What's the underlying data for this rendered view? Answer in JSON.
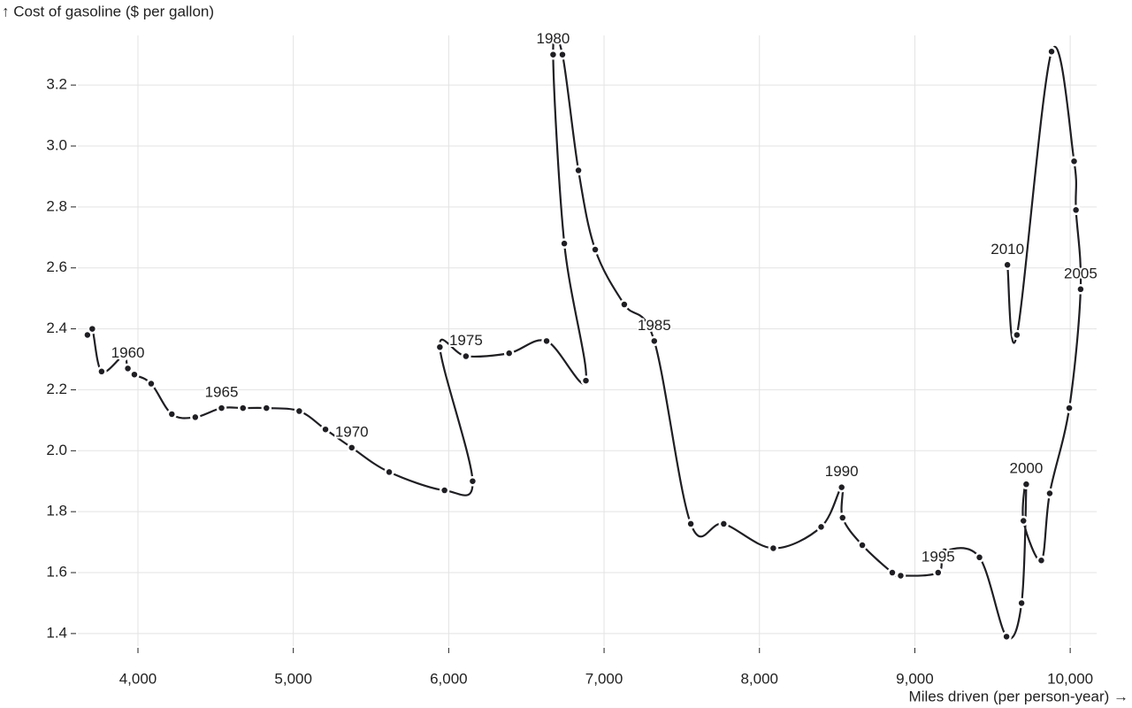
{
  "chart_data": {
    "type": "connected-scatter",
    "ylabel": "↑ Cost of gasoline ($ per gallon)",
    "xlabel": "Miles driven (per person-year) →",
    "color": "#1f1f23",
    "grid": true,
    "xlim": [
      3613,
      10170
    ],
    "ylim": [
      1.359,
      3.363
    ],
    "xticks": [
      {
        "value": 4000,
        "label": "4,000"
      },
      {
        "value": 5000,
        "label": "5,000"
      },
      {
        "value": 6000,
        "label": "6,000"
      },
      {
        "value": 7000,
        "label": "7,000"
      },
      {
        "value": 8000,
        "label": "8,000"
      },
      {
        "value": 9000,
        "label": "9,000"
      },
      {
        "value": 10000,
        "label": "10,000"
      }
    ],
    "yticks": [
      {
        "value": 1.4,
        "label": "1.4"
      },
      {
        "value": 1.6,
        "label": "1.6"
      },
      {
        "value": 1.8,
        "label": "1.8"
      },
      {
        "value": 2.0,
        "label": "2.0"
      },
      {
        "value": 2.2,
        "label": "2.2"
      },
      {
        "value": 2.4,
        "label": "2.4"
      },
      {
        "value": 2.6,
        "label": "2.6"
      },
      {
        "value": 2.8,
        "label": "2.8"
      },
      {
        "value": 3.0,
        "label": "3.0"
      },
      {
        "value": 3.2,
        "label": "3.2"
      }
    ],
    "x": [
      3675,
      3706,
      3766,
      3905,
      3935,
      3977,
      4085,
      4218,
      4369,
      4538,
      4676,
      4827,
      5038,
      5207,
      5376,
      5617,
      5973,
      6154,
      5943,
      6111,
      6389,
      6630,
      6883,
      6744,
      6672,
      6732,
      6835,
      6943,
      7130,
      7323,
      7558,
      7770,
      8089,
      8397,
      8529,
      8535,
      8662,
      8855,
      8909,
      9150,
      9192,
      9416,
      9590,
      9687,
      9717,
      9699,
      9814,
      9868,
      9994,
      10067,
      10037,
      10025,
      9880,
      9657,
      9596
    ],
    "values": [
      2.38,
      2.4,
      2.26,
      2.31,
      2.27,
      2.25,
      2.22,
      2.12,
      2.11,
      2.14,
      2.14,
      2.14,
      2.13,
      2.07,
      2.01,
      1.93,
      1.87,
      1.9,
      2.34,
      2.31,
      2.32,
      2.36,
      2.23,
      2.68,
      3.3,
      3.3,
      2.92,
      2.66,
      2.48,
      2.36,
      1.76,
      1.76,
      1.68,
      1.75,
      1.88,
      1.78,
      1.69,
      1.6,
      1.59,
      1.6,
      1.67,
      1.65,
      1.39,
      1.5,
      1.89,
      1.77,
      1.64,
      1.86,
      2.14,
      2.53,
      2.79,
      2.95,
      3.31,
      2.38,
      2.61
    ],
    "point_labels": [
      null,
      null,
      null,
      null,
      "1960",
      null,
      null,
      null,
      null,
      "1965",
      null,
      null,
      null,
      null,
      "1970",
      null,
      null,
      null,
      null,
      "1975",
      null,
      null,
      null,
      null,
      "1980",
      null,
      null,
      null,
      null,
      "1985",
      null,
      null,
      null,
      null,
      "1990",
      null,
      null,
      null,
      null,
      "1995",
      null,
      null,
      null,
      null,
      "2000",
      null,
      null,
      null,
      null,
      "2005",
      null,
      null,
      null,
      null,
      "2010"
    ]
  }
}
